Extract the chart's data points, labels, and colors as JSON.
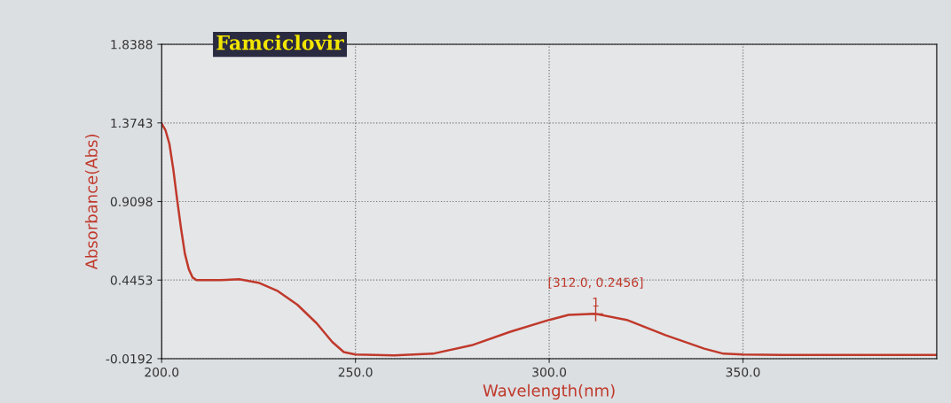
{
  "chart_data": {
    "type": "line",
    "title": "Famciclovir",
    "xlabel": "Wavelength(nm)",
    "ylabel": "Absorbance(Abs)",
    "x": [
      200,
      201,
      202,
      203,
      204,
      205,
      206,
      207,
      208,
      209,
      212,
      215,
      220,
      225,
      230,
      235,
      240,
      244,
      247,
      250,
      260,
      270,
      280,
      290,
      300,
      305,
      312,
      320,
      330,
      340,
      345,
      350,
      360,
      380,
      400
    ],
    "series": [
      {
        "color": "#c0392b",
        "values": [
          1.37,
          1.33,
          1.25,
          1.1,
          0.92,
          0.75,
          0.6,
          0.51,
          0.46,
          0.445,
          0.445,
          0.445,
          0.45,
          0.43,
          0.38,
          0.3,
          0.19,
          0.08,
          0.02,
          0.005,
          0.0,
          0.01,
          0.06,
          0.14,
          0.21,
          0.24,
          0.2456,
          0.21,
          0.12,
          0.04,
          0.01,
          0.005,
          0.003,
          0.003,
          0.003
        ]
      }
    ],
    "annotations": [
      {
        "text": "[312.0, 0.2456]",
        "x": 312,
        "y": 0.2456
      },
      {
        "text": "1",
        "x": 312,
        "y": 0.2456
      }
    ],
    "xlim": [
      200,
      400
    ],
    "xticks": [
      {
        "value": 200,
        "label": "200.0"
      },
      {
        "value": 250,
        "label": "250.0"
      },
      {
        "value": 300,
        "label": "300.0"
      },
      {
        "value": 350,
        "label": "350.0"
      }
    ],
    "ylim": [
      -0.0192,
      1.8388
    ],
    "yticks": [
      -0.0192,
      0.4453,
      0.9098,
      1.3743,
      1.8388
    ],
    "grid": true,
    "marker": "none",
    "line_style": "solid",
    "legend": false
  }
}
